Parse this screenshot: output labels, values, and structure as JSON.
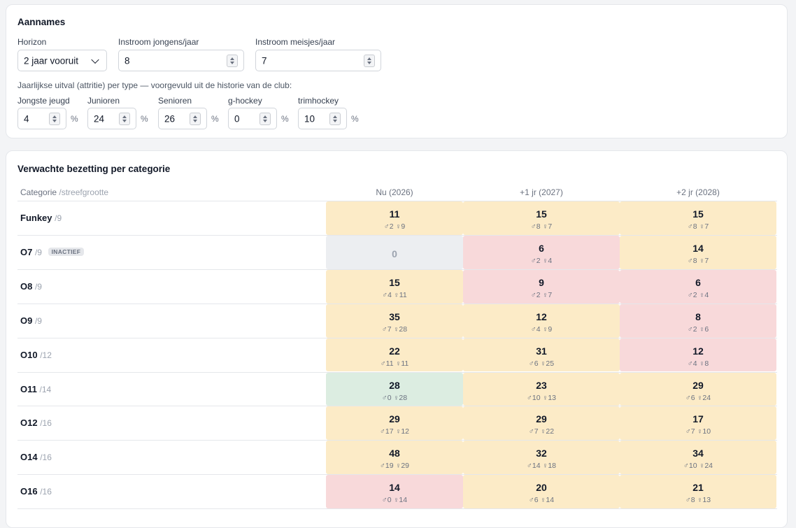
{
  "assumptions": {
    "title": "Aannames",
    "horizon_label": "Horizon",
    "horizon_value": "2 jaar vooruit",
    "boys_label": "Instroom jongens/jaar",
    "boys_value": "8",
    "girls_label": "Instroom meisjes/jaar",
    "girls_value": "7",
    "attrition_note": "Jaarlijkse uitval (attritie) per type — voorgevuld uit de historie van de club:",
    "attrition": [
      {
        "label": "Jongste jeugd",
        "value": "4",
        "unit": "%"
      },
      {
        "label": "Junioren",
        "value": "24",
        "unit": "%"
      },
      {
        "label": "Senioren",
        "value": "26",
        "unit": "%"
      },
      {
        "label": "g-hockey",
        "value": "0",
        "unit": "%"
      },
      {
        "label": "trimhockey",
        "value": "10",
        "unit": "%"
      }
    ]
  },
  "occupancy": {
    "title": "Verwachte bezetting per categorie",
    "col_category": "Categorie",
    "col_category_sub": "/streefgrootte",
    "columns": [
      "Nu (2026)",
      "+1 jr (2027)",
      "+2 jr (2028)"
    ],
    "colors": {
      "yellow": "#fcebc7",
      "red": "#f8d9da",
      "green": "#dcede1",
      "gray": "#eceef1"
    },
    "rows": [
      {
        "name": "Funkey",
        "target": "/9",
        "badge": "",
        "cells": [
          {
            "n": "11",
            "g": "♂2 ♀9",
            "c": "yellow"
          },
          {
            "n": "15",
            "g": "♂8 ♀7",
            "c": "yellow"
          },
          {
            "n": "15",
            "g": "♂8 ♀7",
            "c": "yellow"
          }
        ]
      },
      {
        "name": "O7",
        "target": "/9",
        "badge": "INACTIEF",
        "cells": [
          {
            "n": "0",
            "g": "",
            "c": "gray"
          },
          {
            "n": "6",
            "g": "♂2 ♀4",
            "c": "red"
          },
          {
            "n": "14",
            "g": "♂8 ♀7",
            "c": "yellow"
          }
        ]
      },
      {
        "name": "O8",
        "target": "/9",
        "badge": "",
        "cells": [
          {
            "n": "15",
            "g": "♂4 ♀11",
            "c": "yellow"
          },
          {
            "n": "9",
            "g": "♂2 ♀7",
            "c": "red"
          },
          {
            "n": "6",
            "g": "♂2 ♀4",
            "c": "red"
          }
        ]
      },
      {
        "name": "O9",
        "target": "/9",
        "badge": "",
        "cells": [
          {
            "n": "35",
            "g": "♂7 ♀28",
            "c": "yellow"
          },
          {
            "n": "12",
            "g": "♂4 ♀9",
            "c": "yellow"
          },
          {
            "n": "8",
            "g": "♂2 ♀6",
            "c": "red"
          }
        ]
      },
      {
        "name": "O10",
        "target": "/12",
        "badge": "",
        "cells": [
          {
            "n": "22",
            "g": "♂11 ♀11",
            "c": "yellow"
          },
          {
            "n": "31",
            "g": "♂6 ♀25",
            "c": "yellow"
          },
          {
            "n": "12",
            "g": "♂4 ♀8",
            "c": "red"
          }
        ]
      },
      {
        "name": "O11",
        "target": "/14",
        "badge": "",
        "cells": [
          {
            "n": "28",
            "g": "♂0 ♀28",
            "c": "green"
          },
          {
            "n": "23",
            "g": "♂10 ♀13",
            "c": "yellow"
          },
          {
            "n": "29",
            "g": "♂6 ♀24",
            "c": "yellow"
          }
        ]
      },
      {
        "name": "O12",
        "target": "/16",
        "badge": "",
        "cells": [
          {
            "n": "29",
            "g": "♂17 ♀12",
            "c": "yellow"
          },
          {
            "n": "29",
            "g": "♂7 ♀22",
            "c": "yellow"
          },
          {
            "n": "17",
            "g": "♂7 ♀10",
            "c": "yellow"
          }
        ]
      },
      {
        "name": "O14",
        "target": "/16",
        "badge": "",
        "cells": [
          {
            "n": "48",
            "g": "♂19 ♀29",
            "c": "yellow"
          },
          {
            "n": "32",
            "g": "♂14 ♀18",
            "c": "yellow"
          },
          {
            "n": "34",
            "g": "♂10 ♀24",
            "c": "yellow"
          }
        ]
      },
      {
        "name": "O16",
        "target": "/16",
        "badge": "",
        "cells": [
          {
            "n": "14",
            "g": "♂0 ♀14",
            "c": "red"
          },
          {
            "n": "20",
            "g": "♂6 ♀14",
            "c": "yellow"
          },
          {
            "n": "21",
            "g": "♂8 ♀13",
            "c": "yellow"
          }
        ]
      }
    ]
  }
}
